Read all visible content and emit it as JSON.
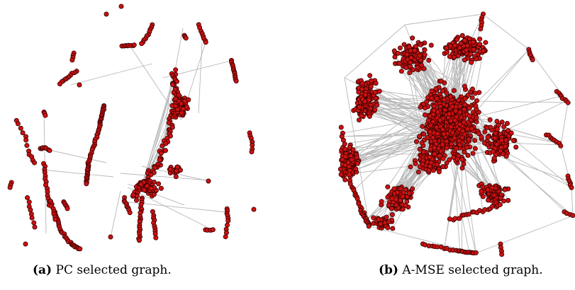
{
  "figure": {
    "panels": [
      {
        "tag": "(a)",
        "caption": "PC selected graph."
      },
      {
        "tag": "(b)",
        "caption": "A-MSE selected graph."
      }
    ]
  },
  "colors": {
    "node_fill": "#cc1111",
    "node_stroke": "#330000",
    "edge": "#b8b8b8",
    "background": "#ffffff"
  }
}
